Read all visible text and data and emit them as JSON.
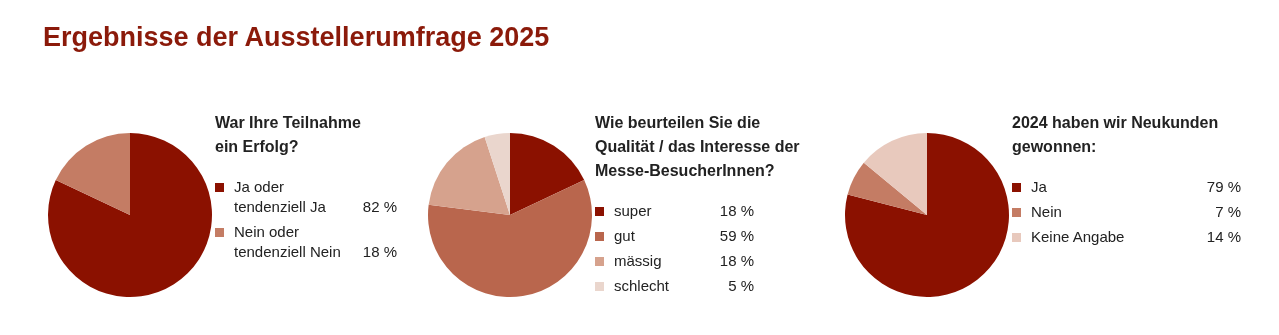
{
  "chart_data": [
    {
      "type": "pie",
      "title": "Ergebnisse der Ausstellerumfrage 2025",
      "subtitle": "War Ihre Teilnahme ein Erfolg?",
      "categories": [
        "Ja oder tendenziell Ja",
        "Nein oder tendenziell Nein"
      ],
      "values": [
        82,
        18
      ],
      "value_labels": [
        "82 %",
        "18 %"
      ],
      "colors": [
        "#8b1100",
        "#c47c64"
      ],
      "legend": "right"
    },
    {
      "type": "pie",
      "subtitle": "Wie beurteilen Sie die Qualität / das Interesse der Messe-BesucherInnen?",
      "categories": [
        "super",
        "gut",
        "mässig",
        "schlecht"
      ],
      "values": [
        18,
        59,
        18,
        5
      ],
      "value_labels": [
        "18 %",
        "59 %",
        "18 %",
        "5 %"
      ],
      "colors": [
        "#8b1100",
        "#b9664d",
        "#d6a28d",
        "#ead6cd"
      ],
      "legend": "right"
    },
    {
      "type": "pie",
      "subtitle": "2024 haben wir Neukunden gewonnen:",
      "categories": [
        "Ja",
        "Nein",
        "Keine Angabe"
      ],
      "values": [
        79,
        7,
        14
      ],
      "value_labels": [
        "79 %",
        "7 %",
        "14 %"
      ],
      "colors": [
        "#8b1100",
        "#c47c64",
        "#e8c9bd"
      ],
      "legend": "right"
    }
  ]
}
